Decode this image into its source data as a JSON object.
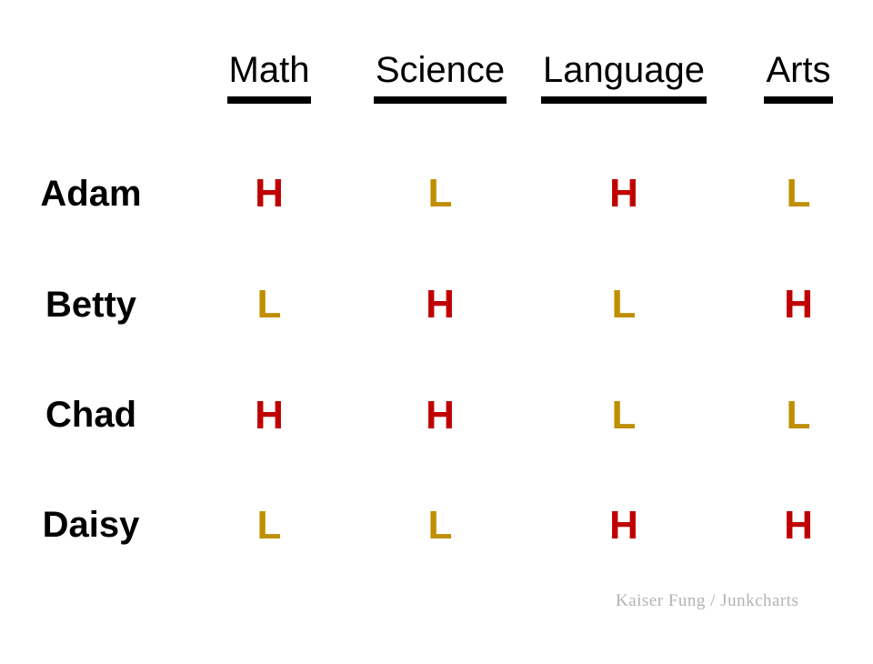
{
  "colors": {
    "high": "#c00000",
    "low": "#bf8f00",
    "text": "#000000",
    "attribution": "#b3b3b3"
  },
  "attribution": "Kaiser Fung / Junkcharts",
  "chart_data": {
    "type": "table",
    "columns": [
      "Math",
      "Science",
      "Language",
      "Arts"
    ],
    "rows": [
      {
        "name": "Adam",
        "values": [
          "H",
          "L",
          "H",
          "L"
        ]
      },
      {
        "name": "Betty",
        "values": [
          "L",
          "H",
          "L",
          "H"
        ]
      },
      {
        "name": "Chad",
        "values": [
          "H",
          "H",
          "L",
          "L"
        ]
      },
      {
        "name": "Daisy",
        "values": [
          "L",
          "L",
          "H",
          "H"
        ]
      }
    ],
    "legend_position": "none",
    "grid": false
  }
}
